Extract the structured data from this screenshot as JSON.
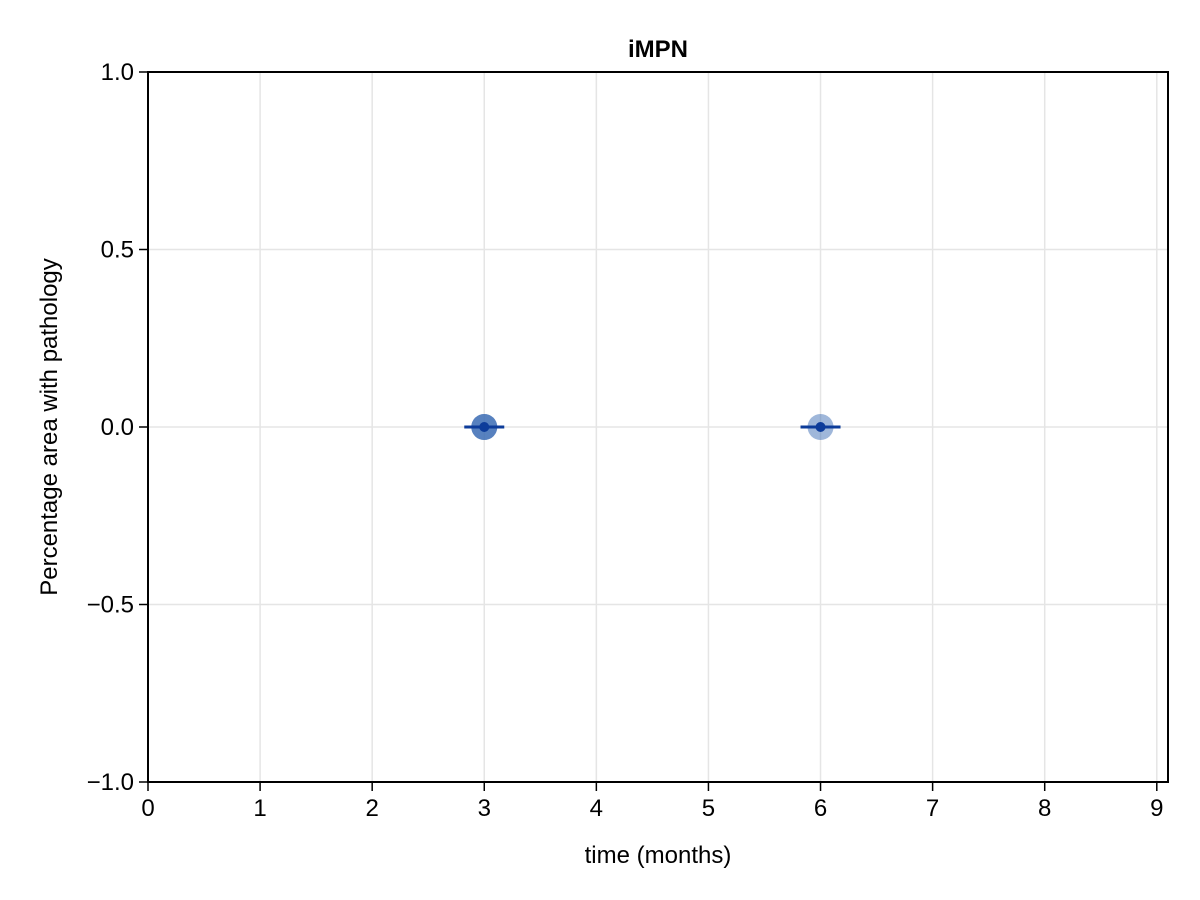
{
  "chart_data": {
    "type": "scatter",
    "title": "iMPN",
    "xlabel": "time (months)",
    "ylabel": "Percentage area with pathology",
    "xlim": [
      0,
      9.1
    ],
    "ylim": [
      -1.0,
      1.0
    ],
    "x_ticks": [
      0,
      1,
      2,
      3,
      4,
      5,
      6,
      7,
      8,
      9
    ],
    "x_tick_labels": [
      "0",
      "1",
      "2",
      "3",
      "4",
      "5",
      "6",
      "7",
      "8",
      "9"
    ],
    "y_ticks": [
      -1.0,
      -0.5,
      0.0,
      0.5,
      1.0
    ],
    "y_tick_labels": [
      "−1.0",
      "−0.5",
      "0.0",
      "0.5",
      "1.0"
    ],
    "grid": true,
    "colors": {
      "points": "#3f6fb5",
      "mean": "#0d3c9a",
      "errorbar": "#0d3c9a",
      "grid": "#e5e5e5",
      "axis": "#000000"
    },
    "series": [
      {
        "points": [
          {
            "x": 3,
            "y": 0.0
          },
          {
            "x": 3,
            "y": 0.0
          },
          {
            "x": 3,
            "y": 0.0
          },
          {
            "x": 6,
            "y": 0.0
          }
        ],
        "summary": [
          {
            "x": 3,
            "y": 0.0,
            "error": 0.0
          },
          {
            "x": 6,
            "y": 0.0,
            "error": 0.0
          }
        ]
      }
    ]
  }
}
